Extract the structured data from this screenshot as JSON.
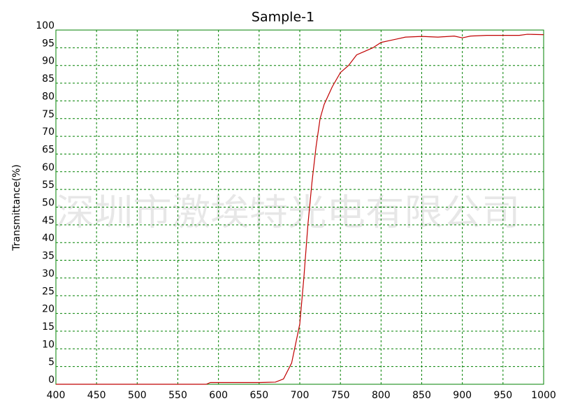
{
  "chart_data": {
    "type": "line",
    "title": "Sample-1",
    "y_label": "Transmittance(%)",
    "watermark": "深圳市激埃特光电有限公司",
    "x": [
      400,
      450,
      500,
      550,
      585,
      590,
      600,
      650,
      670,
      680,
      690,
      700,
      705,
      710,
      715,
      720,
      725,
      730,
      740,
      750,
      760,
      770,
      780,
      790,
      800,
      810,
      820,
      830,
      850,
      870,
      890,
      900,
      910,
      930,
      950,
      970,
      980,
      1000
    ],
    "series": [
      {
        "name": "Sample-1",
        "color": "#c00000",
        "values": [
          0,
          0,
          0,
          0,
          0,
          0.5,
          0.5,
          0.5,
          0.6,
          1.5,
          6,
          17,
          30,
          45,
          57,
          67,
          75,
          79,
          84,
          88,
          90,
          93,
          94,
          95,
          96.5,
          97,
          97.5,
          98,
          98.2,
          98,
          98.3,
          97.8,
          98.3,
          98.5,
          98.5,
          98.5,
          98.8,
          98.7
        ]
      }
    ],
    "xlim": [
      400,
      1000
    ],
    "ylim": [
      0,
      100
    ],
    "xticks": [
      400,
      450,
      500,
      550,
      600,
      650,
      700,
      750,
      800,
      850,
      900,
      950,
      1000
    ],
    "yticks": [
      0,
      5,
      10,
      15,
      20,
      25,
      30,
      35,
      40,
      45,
      50,
      55,
      60,
      65,
      70,
      75,
      80,
      85,
      90,
      95,
      100
    ],
    "grid": true,
    "grid_color": "#008000"
  }
}
